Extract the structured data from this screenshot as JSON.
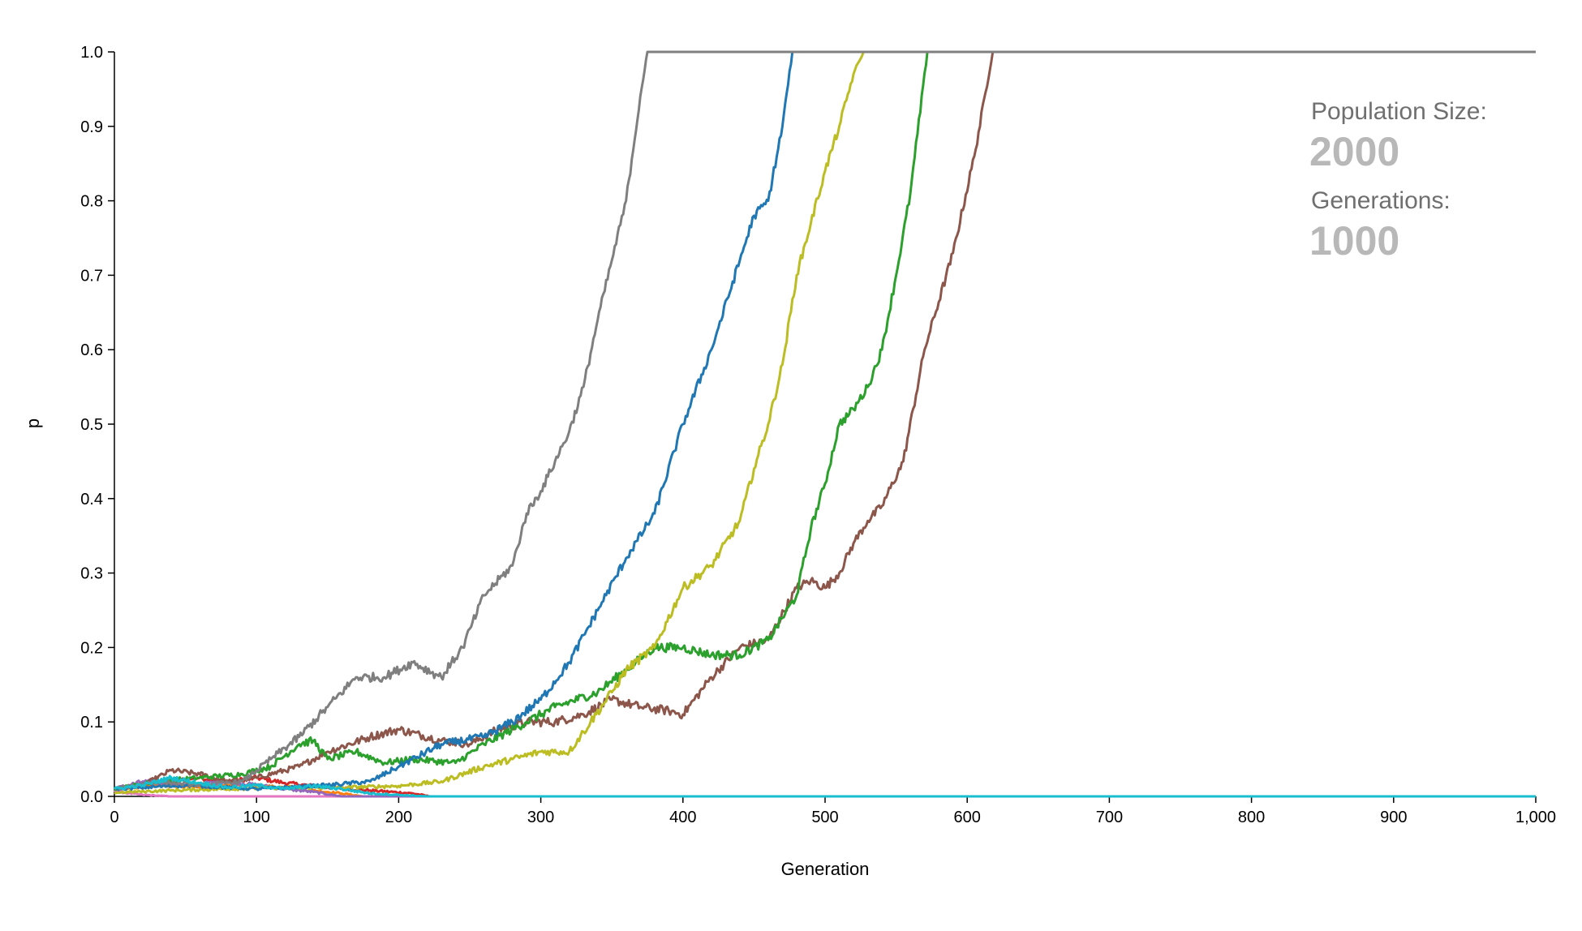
{
  "chart_data": {
    "type": "line",
    "title": "",
    "xlabel": "Generation",
    "ylabel": "p",
    "xlim": [
      0,
      1000
    ],
    "ylim": [
      0,
      1
    ],
    "grid": false,
    "x_ticks": [
      "0",
      "100",
      "200",
      "300",
      "400",
      "500",
      "600",
      "700",
      "800",
      "900",
      "1,000"
    ],
    "y_ticks": [
      "0.0",
      "0.1",
      "0.2",
      "0.3",
      "0.4",
      "0.5",
      "0.6",
      "0.7",
      "0.8",
      "0.9",
      "1.0"
    ],
    "series": [
      {
        "color": "#d62728",
        "fixation": 0,
        "points": [
          [
            0,
            0.01
          ],
          [
            20,
            0.015
          ],
          [
            40,
            0.02
          ],
          [
            60,
            0.025
          ],
          [
            80,
            0.02
          ],
          [
            100,
            0.025
          ],
          [
            120,
            0.018
          ],
          [
            150,
            0.012
          ],
          [
            180,
            0.008
          ],
          [
            210,
            0.004
          ],
          [
            222,
            0
          ]
        ]
      },
      {
        "color": "#e377c2",
        "fixation": 0,
        "points": [
          [
            0,
            0.008
          ],
          [
            10,
            0.004
          ],
          [
            20,
            0.002
          ],
          [
            30,
            0.001
          ],
          [
            40,
            0
          ]
        ]
      },
      {
        "color": "#ff7f0e",
        "fixation": 0,
        "points": [
          [
            0,
            0.01
          ],
          [
            30,
            0.015
          ],
          [
            60,
            0.012
          ],
          [
            90,
            0.015
          ],
          [
            120,
            0.012
          ],
          [
            140,
            0.008
          ],
          [
            160,
            0.004
          ],
          [
            175,
            0
          ]
        ]
      },
      {
        "color": "#9467bd",
        "fixation": 0,
        "points": [
          [
            0,
            0.01
          ],
          [
            20,
            0.02
          ],
          [
            50,
            0.015
          ],
          [
            80,
            0.02
          ],
          [
            100,
            0.015
          ],
          [
            120,
            0.01
          ],
          [
            140,
            0.006
          ],
          [
            160,
            0
          ]
        ]
      },
      {
        "color": "#8c564b",
        "fixation": 1,
        "points": [
          [
            0,
            0.01
          ],
          [
            20,
            0.015
          ],
          [
            40,
            0.035
          ],
          [
            60,
            0.03
          ],
          [
            80,
            0.02
          ],
          [
            100,
            0.025
          ],
          [
            130,
            0.04
          ],
          [
            150,
            0.06
          ],
          [
            180,
            0.08
          ],
          [
            200,
            0.09
          ],
          [
            230,
            0.075
          ],
          [
            250,
            0.07
          ],
          [
            270,
            0.09
          ],
          [
            290,
            0.1
          ],
          [
            310,
            0.1
          ],
          [
            330,
            0.11
          ],
          [
            350,
            0.13
          ],
          [
            370,
            0.12
          ],
          [
            390,
            0.115
          ],
          [
            400,
            0.11
          ],
          [
            420,
            0.16
          ],
          [
            440,
            0.2
          ],
          [
            460,
            0.21
          ],
          [
            480,
            0.28
          ],
          [
            490,
            0.29
          ],
          [
            500,
            0.28
          ],
          [
            510,
            0.3
          ],
          [
            520,
            0.34
          ],
          [
            530,
            0.37
          ],
          [
            540,
            0.39
          ],
          [
            555,
            0.45
          ],
          [
            570,
            0.6
          ],
          [
            590,
            0.73
          ],
          [
            605,
            0.86
          ],
          [
            618,
            1.0
          ]
        ]
      },
      {
        "color": "#2ca02c",
        "fixation": 1,
        "points": [
          [
            0,
            0.01
          ],
          [
            30,
            0.02
          ],
          [
            60,
            0.025
          ],
          [
            90,
            0.03
          ],
          [
            110,
            0.04
          ],
          [
            130,
            0.07
          ],
          [
            140,
            0.075
          ],
          [
            150,
            0.05
          ],
          [
            170,
            0.06
          ],
          [
            190,
            0.045
          ],
          [
            210,
            0.05
          ],
          [
            240,
            0.045
          ],
          [
            260,
            0.07
          ],
          [
            290,
            0.1
          ],
          [
            310,
            0.12
          ],
          [
            340,
            0.14
          ],
          [
            360,
            0.17
          ],
          [
            380,
            0.2
          ],
          [
            400,
            0.2
          ],
          [
            420,
            0.19
          ],
          [
            440,
            0.19
          ],
          [
            460,
            0.21
          ],
          [
            480,
            0.27
          ],
          [
            490,
            0.36
          ],
          [
            500,
            0.42
          ],
          [
            510,
            0.5
          ],
          [
            520,
            0.52
          ],
          [
            530,
            0.55
          ],
          [
            540,
            0.6
          ],
          [
            550,
            0.7
          ],
          [
            560,
            0.81
          ],
          [
            572,
            1.0
          ]
        ]
      },
      {
        "color": "#bcbd22",
        "fixation": 1,
        "points": [
          [
            0,
            0.005
          ],
          [
            40,
            0.008
          ],
          [
            80,
            0.01
          ],
          [
            120,
            0.012
          ],
          [
            160,
            0.012
          ],
          [
            200,
            0.014
          ],
          [
            230,
            0.02
          ],
          [
            260,
            0.04
          ],
          [
            280,
            0.05
          ],
          [
            300,
            0.06
          ],
          [
            320,
            0.06
          ],
          [
            335,
            0.1
          ],
          [
            350,
            0.14
          ],
          [
            360,
            0.17
          ],
          [
            380,
            0.2
          ],
          [
            400,
            0.28
          ],
          [
            420,
            0.31
          ],
          [
            440,
            0.37
          ],
          [
            450,
            0.44
          ],
          [
            460,
            0.5
          ],
          [
            470,
            0.58
          ],
          [
            480,
            0.7
          ],
          [
            490,
            0.77
          ],
          [
            500,
            0.84
          ],
          [
            510,
            0.9
          ],
          [
            520,
            0.97
          ],
          [
            527,
            1.0
          ]
        ]
      },
      {
        "color": "#1f77b4",
        "fixation": 1,
        "points": [
          [
            0,
            0.01
          ],
          [
            50,
            0.015
          ],
          [
            100,
            0.01
          ],
          [
            150,
            0.015
          ],
          [
            180,
            0.02
          ],
          [
            200,
            0.04
          ],
          [
            230,
            0.07
          ],
          [
            260,
            0.08
          ],
          [
            280,
            0.1
          ],
          [
            300,
            0.13
          ],
          [
            320,
            0.18
          ],
          [
            340,
            0.25
          ],
          [
            360,
            0.32
          ],
          [
            380,
            0.38
          ],
          [
            400,
            0.5
          ],
          [
            420,
            0.6
          ],
          [
            440,
            0.72
          ],
          [
            450,
            0.78
          ],
          [
            460,
            0.8
          ],
          [
            470,
            0.9
          ],
          [
            477,
            1.0
          ]
        ]
      },
      {
        "color": "#7f7f7f",
        "fixation": 1,
        "points": [
          [
            0,
            0.01
          ],
          [
            30,
            0.02
          ],
          [
            60,
            0.015
          ],
          [
            90,
            0.02
          ],
          [
            110,
            0.05
          ],
          [
            130,
            0.08
          ],
          [
            150,
            0.12
          ],
          [
            170,
            0.16
          ],
          [
            190,
            0.16
          ],
          [
            210,
            0.18
          ],
          [
            230,
            0.16
          ],
          [
            245,
            0.2
          ],
          [
            260,
            0.27
          ],
          [
            280,
            0.31
          ],
          [
            290,
            0.38
          ],
          [
            300,
            0.41
          ],
          [
            310,
            0.45
          ],
          [
            320,
            0.49
          ],
          [
            330,
            0.55
          ],
          [
            340,
            0.64
          ],
          [
            350,
            0.72
          ],
          [
            360,
            0.8
          ],
          [
            370,
            0.94
          ],
          [
            375,
            1.0
          ]
        ]
      },
      {
        "color": "#17becf",
        "fixation": 0,
        "points": [
          [
            0,
            0.01
          ],
          [
            20,
            0.015
          ],
          [
            40,
            0.025
          ],
          [
            60,
            0.018
          ],
          [
            80,
            0.012
          ],
          [
            100,
            0.015
          ],
          [
            120,
            0.01
          ],
          [
            140,
            0.014
          ],
          [
            160,
            0.01
          ],
          [
            180,
            0.004
          ],
          [
            200,
            0.002
          ],
          [
            220,
            0
          ]
        ]
      }
    ]
  },
  "info": {
    "population_label": "Population Size:",
    "population_value": "2000",
    "generations_label": "Generations:",
    "generations_value": "1000"
  }
}
